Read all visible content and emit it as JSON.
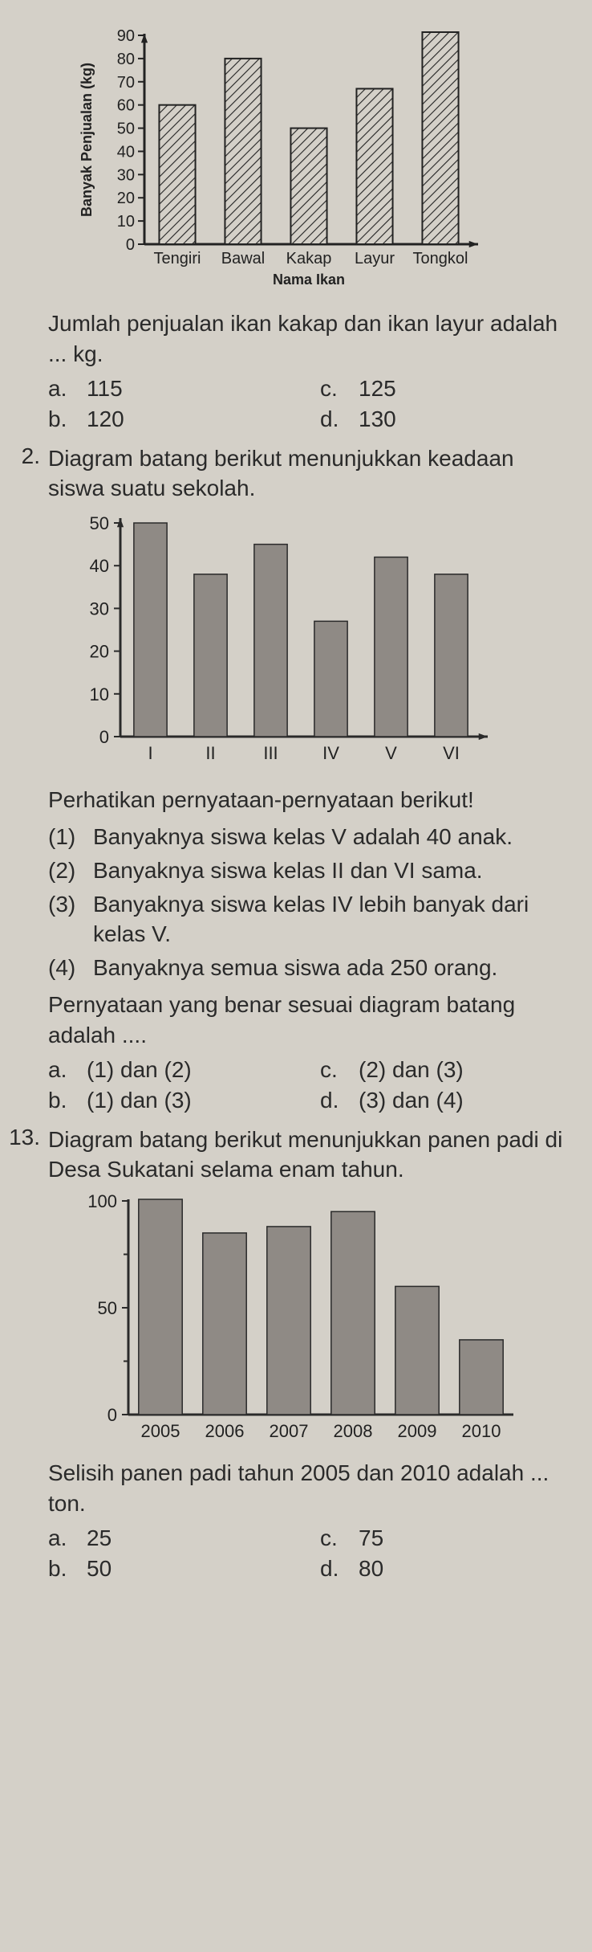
{
  "q1": {
    "chart": {
      "type": "bar",
      "ylabel": "Banyak Penjualan (kg)",
      "xlabel": "Nama Ikan",
      "ylim": [
        0,
        90
      ],
      "ytick_step": 10,
      "categories": [
        "Tengiri",
        "Bawal",
        "Kakap",
        "Layur",
        "Tongkol"
      ],
      "values": [
        60,
        80,
        50,
        67,
        93
      ],
      "bar_fill": "hatch",
      "bar_stroke": "#222222",
      "hatch_stroke": "#222222",
      "background_color": "#d4d0c8",
      "axis_color": "#222222",
      "bar_width": 0.55,
      "font_size": 20
    },
    "question": "Jumlah penjualan ikan kakap dan ikan layur adalah ... kg.",
    "options": {
      "a": "115",
      "b": "120",
      "c": "125",
      "d": "130"
    }
  },
  "q2": {
    "number": "2.",
    "intro": "Diagram batang berikut menunjukkan keadaan siswa suatu sekolah.",
    "chart": {
      "type": "bar",
      "ylim": [
        0,
        50
      ],
      "ytick_step": 10,
      "categories": [
        "I",
        "II",
        "III",
        "IV",
        "V",
        "VI"
      ],
      "values": [
        50,
        38,
        45,
        27,
        42,
        38
      ],
      "bar_fill": "#8f8a85",
      "bar_stroke": "#2a2a2a",
      "background_color": "#d4d0c8",
      "axis_color": "#2a2a2a",
      "bar_width": 0.55,
      "font_size": 22
    },
    "stmt_intro": "Perhatikan pernyataan-pernyataan berikut!",
    "statements": [
      {
        "n": "(1)",
        "t": "Banyaknya siswa kelas V adalah 40 anak."
      },
      {
        "n": "(2)",
        "t": "Banyaknya siswa kelas II dan VI sama."
      },
      {
        "n": "(3)",
        "t": "Banyaknya siswa kelas IV lebih banyak dari kelas V."
      },
      {
        "n": "(4)",
        "t": "Banyaknya semua siswa ada 250 orang."
      }
    ],
    "question": "Pernyataan yang benar sesuai diagram batang adalah ....",
    "options": {
      "a": "(1) dan (2)",
      "b": "(1) dan (3)",
      "c": "(2) dan (3)",
      "d": "(3) dan (4)"
    }
  },
  "q3": {
    "number": "13.",
    "intro": "Diagram batang berikut menunjukkan panen padi di Desa Sukatani selama enam tahun.",
    "chart": {
      "type": "bar",
      "ylim": [
        0,
        100
      ],
      "yticks": [
        0,
        50,
        100
      ],
      "minor_tick_step": 25,
      "categories": [
        "2005",
        "2006",
        "2007",
        "2008",
        "2009",
        "2010"
      ],
      "values": [
        110,
        85,
        88,
        95,
        60,
        35
      ],
      "bar_fill": "#8f8a85",
      "bar_stroke": "#2a2a2a",
      "background_color": "#d4d0c8",
      "axis_color": "#2a2a2a",
      "bar_width": 0.68,
      "font_size": 22
    },
    "question": "Selisih panen padi tahun 2005 dan 2010 adalah ... ton.",
    "options": {
      "a": "25",
      "b": "50",
      "c": "75",
      "d": "80"
    }
  }
}
